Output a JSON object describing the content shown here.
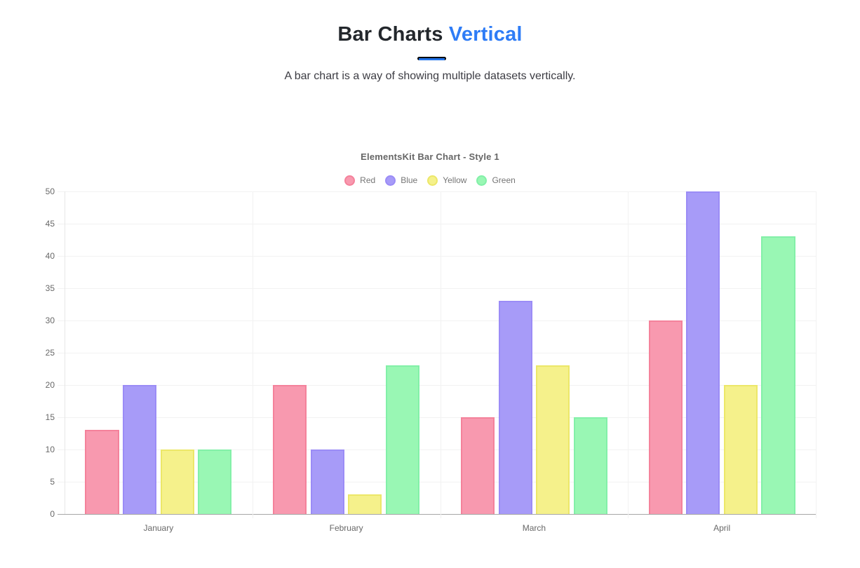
{
  "accent_color": "#2e7cf6",
  "header": {
    "title_main": "Bar Charts",
    "title_accent": "Vertical",
    "subtitle": "A bar chart is a way of showing multiple datasets vertically."
  },
  "chart_data": {
    "type": "bar",
    "title": "ElementsKit Bar Chart - Style 1",
    "categories": [
      "January",
      "February",
      "March",
      "April"
    ],
    "series": [
      {
        "name": "Red",
        "fill": "#f899af",
        "border": "#f4829b",
        "values": [
          13,
          20,
          15,
          30
        ]
      },
      {
        "name": "Blue",
        "fill": "#a79bf8",
        "border": "#9b8cf6",
        "values": [
          20,
          10,
          33,
          50
        ]
      },
      {
        "name": "Yellow",
        "fill": "#f5f18b",
        "border": "#ece769",
        "values": [
          10,
          3,
          23,
          20
        ]
      },
      {
        "name": "Green",
        "fill": "#99f7b4",
        "border": "#83f0a8",
        "values": [
          10,
          23,
          15,
          43
        ]
      }
    ],
    "ylabel": "",
    "xlabel": "",
    "ylim": [
      0,
      50
    ],
    "ytick_step": 5,
    "grid": true,
    "legend_position": "top"
  }
}
